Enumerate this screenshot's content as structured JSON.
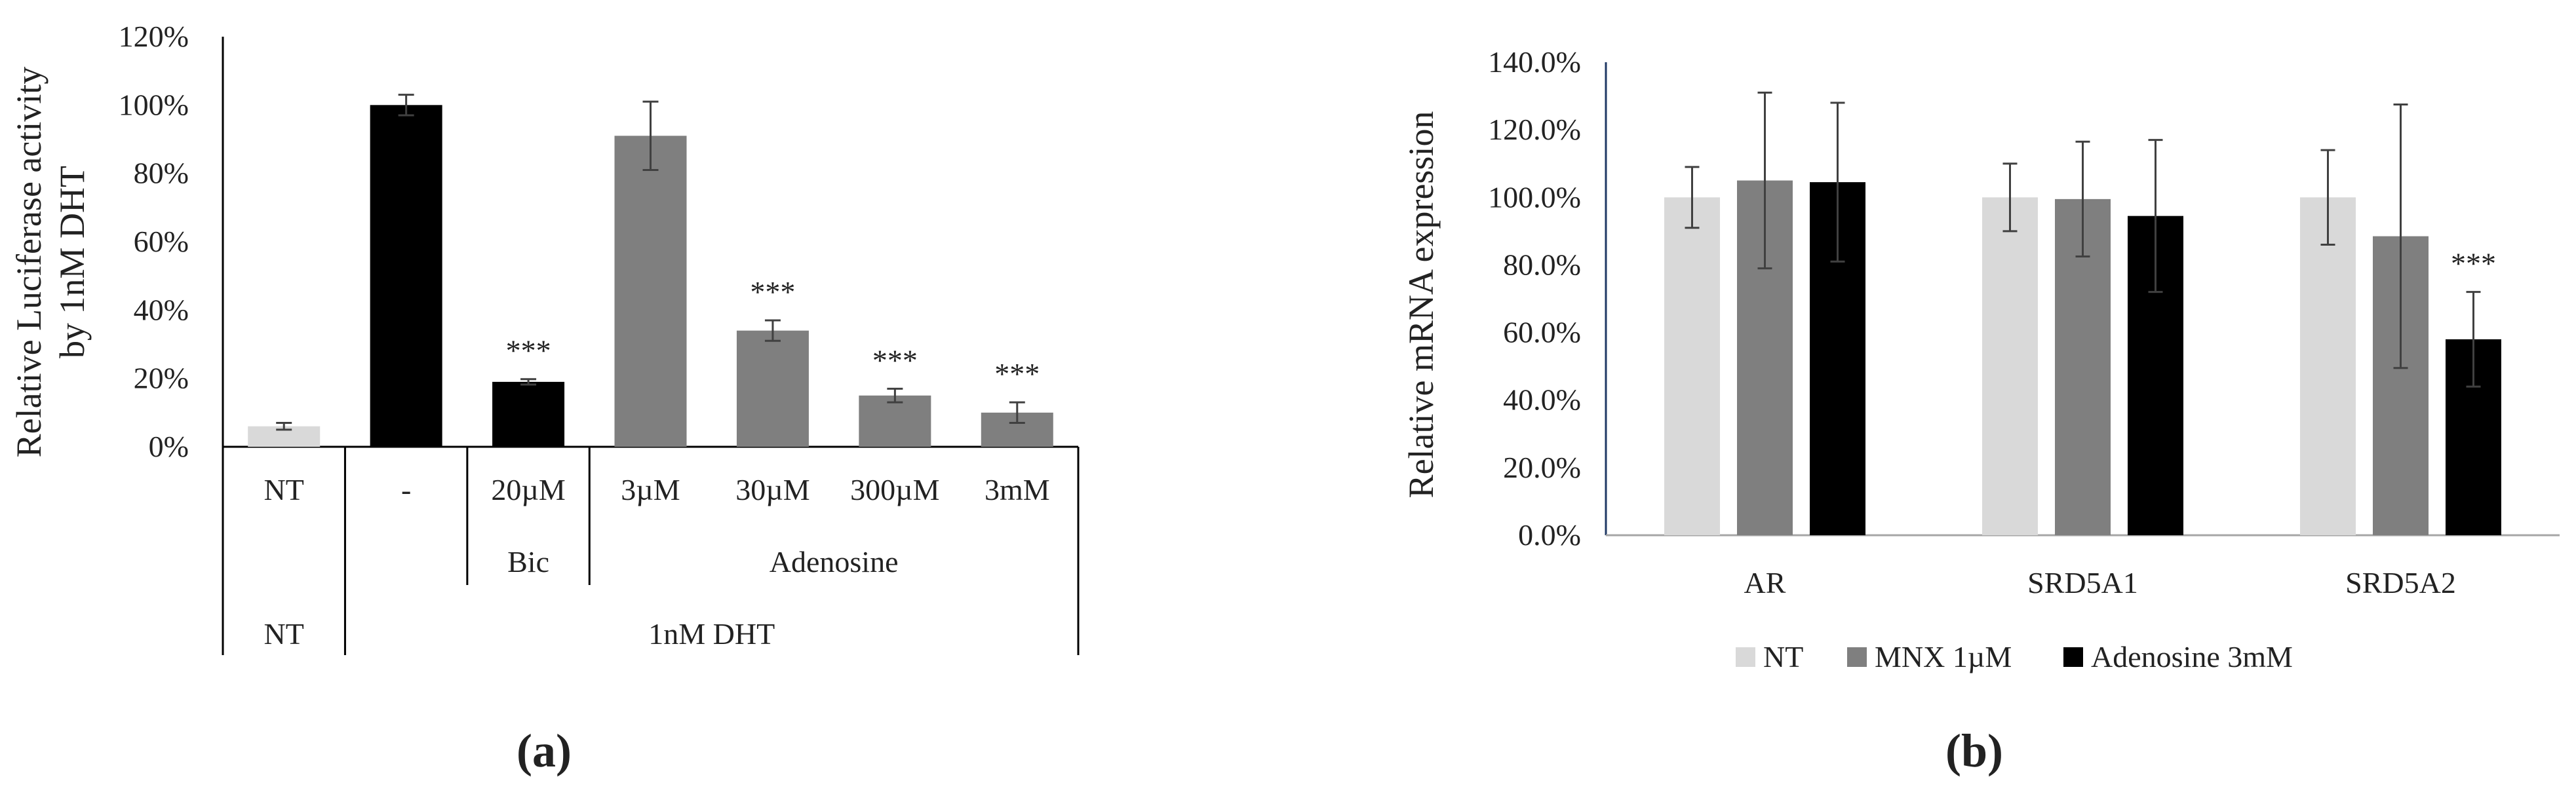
{
  "colors": {
    "light": "#d9d9d9",
    "mid": "#7f7f7f",
    "dark": "#000000",
    "axis_b": "#1f3864"
  },
  "chart_data": [
    {
      "type": "bar",
      "panel_label": "(a)",
      "ylabel_line1": "Relative Luciferase activity",
      "ylabel_line2": "by 1nM DHT",
      "ylim": [
        0,
        120
      ],
      "ytick_values": [
        0,
        20,
        40,
        60,
        80,
        100,
        120
      ],
      "ytick_labels": [
        "0%",
        "20%",
        "40%",
        "60%",
        "80%",
        "100%",
        "120%"
      ],
      "grid": false,
      "categories": [
        "NT",
        "-",
        "20µM",
        "3µM",
        "30µM",
        "300µM",
        "3mM"
      ],
      "values": [
        6,
        100,
        19,
        91,
        34,
        15,
        10
      ],
      "errors": [
        1,
        3,
        0.8,
        10,
        3,
        2,
        3
      ],
      "bar_colors": [
        "light",
        "dark",
        "dark",
        "mid",
        "mid",
        "mid",
        "mid"
      ],
      "annotations": [
        "",
        "",
        "***",
        "",
        "***",
        "***",
        "***"
      ],
      "group_level2": [
        {
          "label": "Bic",
          "from": 2,
          "to": 2
        },
        {
          "label": "Adenosine",
          "from": 3,
          "to": 6
        }
      ],
      "group_level3": [
        {
          "label": "NT",
          "from": 0,
          "to": 0
        },
        {
          "label": "1nM DHT",
          "from": 1,
          "to": 6
        }
      ]
    },
    {
      "type": "bar",
      "panel_label": "(b)",
      "ylabel": "Relative mRNA expression",
      "ylim": [
        0,
        140
      ],
      "ytick_values": [
        0,
        20,
        40,
        60,
        80,
        100,
        120,
        140
      ],
      "ytick_labels": [
        "0.0%",
        "20.0%",
        "40.0%",
        "60.0%",
        "80.0%",
        "100.0%",
        "120.0%",
        "140.0%"
      ],
      "grid": false,
      "legend_position": "bottom",
      "categories": [
        "AR",
        "SRD5A1",
        "SRD5A2"
      ],
      "series": [
        {
          "name": "NT",
          "color": "light",
          "values": [
            100,
            100,
            100
          ],
          "errors": [
            9,
            10,
            14
          ],
          "annotations": [
            "",
            "",
            ""
          ]
        },
        {
          "name": "MNX 1µM",
          "color": "mid",
          "values": [
            105,
            99.5,
            88.5
          ],
          "errors": [
            26,
            17,
            39
          ],
          "annotations": [
            "",
            "",
            ""
          ]
        },
        {
          "name": "Adenosine 3mM",
          "color": "dark",
          "values": [
            104.5,
            94.5,
            58
          ],
          "errors": [
            23.5,
            22.5,
            14
          ],
          "annotations": [
            "",
            "",
            "***"
          ]
        }
      ]
    }
  ]
}
